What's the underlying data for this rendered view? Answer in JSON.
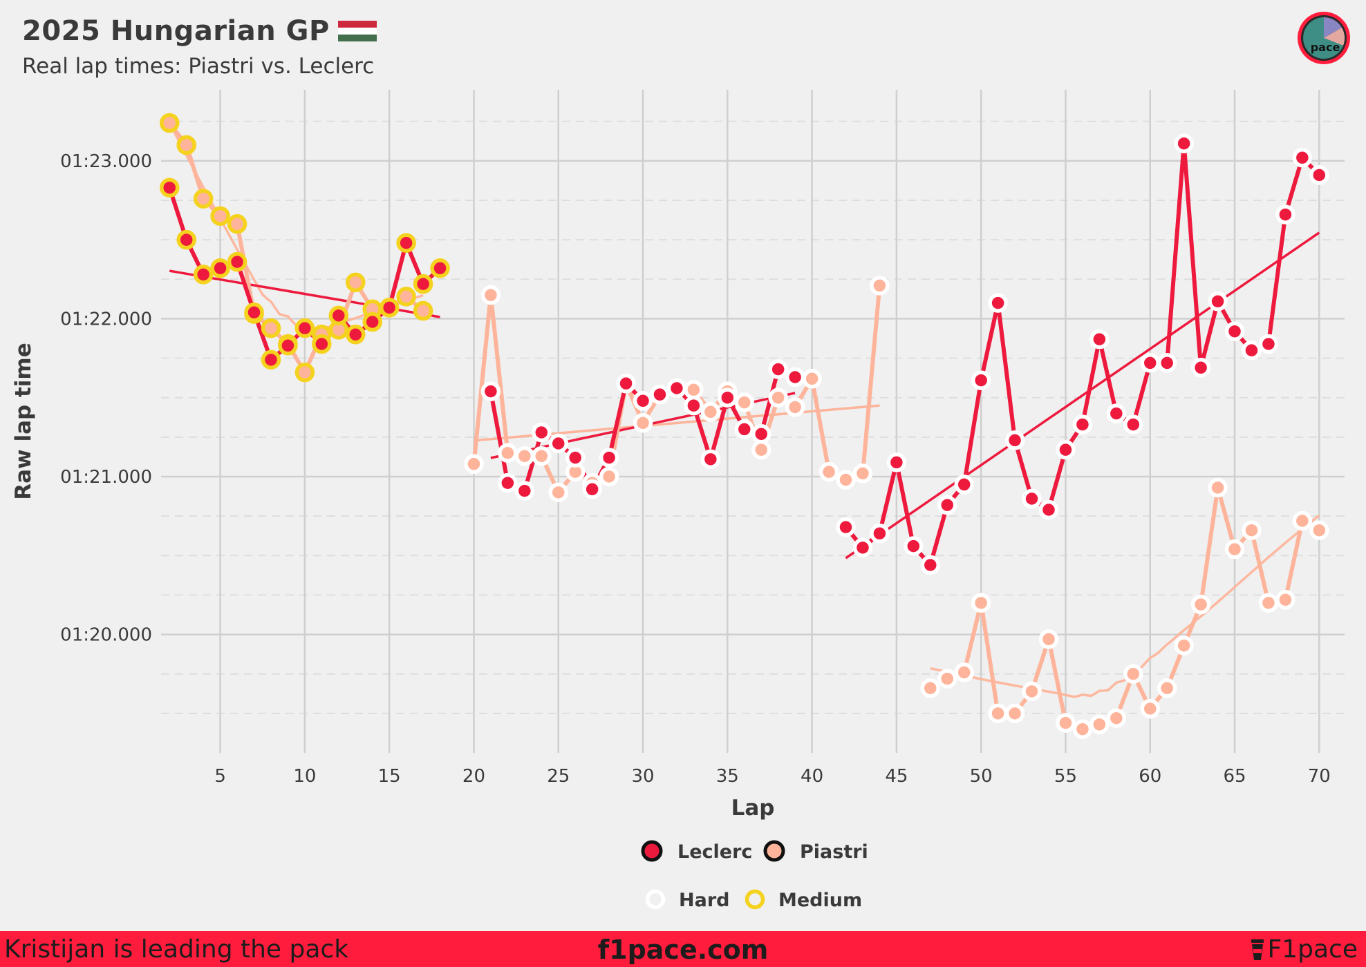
{
  "header": {
    "title": "2025 Hungarian GP",
    "subtitle": "Real lap times: Piastri vs. Leclerc",
    "flag_colors": [
      "#cd2a3e",
      "#ffffff",
      "#436f4d"
    ]
  },
  "logo": {
    "text": "pace",
    "icon": "pace-logo-icon"
  },
  "footer": {
    "left_text": "Kristijan is leading the pack",
    "center_text": "f1pace.com",
    "right_text": "F1pace",
    "right_icon": "coffee-cup-icon",
    "background": "#ff1c3c"
  },
  "chart_data": {
    "type": "line",
    "xlabel": "Lap",
    "ylabel": "Raw lap time",
    "xlim": [
      1.5,
      71.5
    ],
    "ylim": [
      79.25,
      83.45
    ],
    "x_ticks": [
      5,
      10,
      15,
      20,
      25,
      30,
      35,
      40,
      45,
      50,
      55,
      60,
      65,
      70
    ],
    "y_ticks": [
      {
        "value": 80,
        "label": "01:20.000"
      },
      {
        "value": 81,
        "label": "01:21.000"
      },
      {
        "value": 82,
        "label": "01:22.000"
      },
      {
        "value": 83,
        "label": "01:23.000"
      }
    ],
    "grid": true,
    "legend_position": "bottom",
    "legend_drivers": [
      {
        "name": "Leclerc",
        "color": "#ee1a3e"
      },
      {
        "name": "Piastri",
        "color": "#fdb49a"
      }
    ],
    "legend_compounds": [
      {
        "name": "Hard",
        "color": "#ffffff"
      },
      {
        "name": "Medium",
        "color": "#f5d21e"
      }
    ],
    "compound_colors": {
      "Hard": "#ffffff",
      "Medium": "#f5d21e"
    },
    "series": [
      {
        "name": "Leclerc",
        "color": "#ee1a3e",
        "stints": [
          {
            "compound": "Medium",
            "trend": "linear",
            "points": [
              [
                2,
                82.83
              ],
              [
                3,
                82.5
              ],
              [
                4,
                82.28
              ],
              [
                5,
                82.32
              ],
              [
                6,
                82.36
              ],
              [
                7,
                82.04
              ],
              [
                8,
                81.74
              ],
              [
                9,
                81.83
              ],
              [
                10,
                81.94
              ],
              [
                11,
                81.84
              ],
              [
                12,
                82.02
              ],
              [
                13,
                81.9
              ],
              [
                14,
                81.98
              ],
              [
                15,
                82.07
              ],
              [
                16,
                82.48
              ],
              [
                17,
                82.22
              ],
              [
                18,
                82.32
              ]
            ]
          },
          {
            "compound": "Hard",
            "trend": "linear",
            "points": [
              [
                21,
                81.54
              ],
              [
                22,
                80.96
              ],
              [
                23,
                80.91
              ],
              [
                24,
                81.28
              ],
              [
                25,
                81.21
              ],
              [
                26,
                81.12
              ],
              [
                27,
                80.92
              ],
              [
                28,
                81.12
              ],
              [
                29,
                81.59
              ],
              [
                30,
                81.48
              ],
              [
                31,
                81.52
              ],
              [
                32,
                81.56
              ],
              [
                33,
                81.45
              ],
              [
                34,
                81.11
              ],
              [
                35,
                81.5
              ],
              [
                36,
                81.3
              ],
              [
                37,
                81.27
              ],
              [
                38,
                81.68
              ],
              [
                39,
                81.63
              ]
            ]
          },
          {
            "compound": "Hard",
            "trend": "linear",
            "points": [
              [
                42,
                80.68
              ],
              [
                43,
                80.55
              ],
              [
                44,
                80.64
              ],
              [
                45,
                81.09
              ],
              [
                46,
                80.56
              ],
              [
                47,
                80.44
              ],
              [
                48,
                80.82
              ],
              [
                49,
                80.95
              ],
              [
                50,
                81.61
              ],
              [
                51,
                82.1
              ],
              [
                52,
                81.23
              ],
              [
                53,
                80.86
              ],
              [
                54,
                80.79
              ],
              [
                55,
                81.17
              ],
              [
                56,
                81.33
              ],
              [
                57,
                81.87
              ],
              [
                58,
                81.4
              ],
              [
                59,
                81.33
              ],
              [
                60,
                81.72
              ],
              [
                61,
                81.72
              ],
              [
                62,
                83.11
              ],
              [
                63,
                81.69
              ],
              [
                64,
                82.11
              ],
              [
                65,
                81.92
              ],
              [
                66,
                81.8
              ],
              [
                67,
                81.84
              ],
              [
                68,
                82.66
              ],
              [
                69,
                83.02
              ],
              [
                70,
                82.91
              ]
            ]
          }
        ]
      },
      {
        "name": "Piastri",
        "color": "#fdb49a",
        "stints": [
          {
            "compound": "Medium",
            "trend": "smooth",
            "points": [
              [
                2,
                83.24
              ],
              [
                3,
                83.1
              ],
              [
                4,
                82.76
              ],
              [
                5,
                82.65
              ],
              [
                6,
                82.6
              ],
              [
                7,
                82.03
              ],
              [
                8,
                81.94
              ],
              [
                9,
                81.84
              ],
              [
                10,
                81.66
              ],
              [
                11,
                81.9
              ],
              [
                12,
                81.93
              ],
              [
                13,
                82.23
              ],
              [
                14,
                82.06
              ],
              [
                15,
                82.07
              ],
              [
                16,
                82.14
              ],
              [
                17,
                82.05
              ]
            ]
          },
          {
            "compound": "Hard",
            "trend": "linear",
            "points": [
              [
                20,
                81.08
              ],
              [
                21,
                82.15
              ],
              [
                22,
                81.15
              ],
              [
                23,
                81.13
              ],
              [
                24,
                81.13
              ],
              [
                25,
                80.9
              ],
              [
                26,
                81.03
              ],
              [
                27,
                80.96
              ],
              [
                28,
                81.0
              ],
              [
                29,
                81.59
              ],
              [
                30,
                81.34
              ],
              [
                31,
                81.52
              ],
              [
                32,
                81.56
              ],
              [
                33,
                81.55
              ],
              [
                34,
                81.41
              ],
              [
                35,
                81.54
              ],
              [
                36,
                81.47
              ],
              [
                37,
                81.17
              ],
              [
                38,
                81.5
              ],
              [
                39,
                81.44
              ],
              [
                40,
                81.62
              ],
              [
                41,
                81.03
              ],
              [
                42,
                80.98
              ],
              [
                43,
                81.02
              ],
              [
                44,
                82.21
              ]
            ]
          },
          {
            "compound": "Hard",
            "trend": "smooth",
            "points": [
              [
                47,
                79.66
              ],
              [
                48,
                79.72
              ],
              [
                49,
                79.76
              ],
              [
                50,
                80.2
              ],
              [
                51,
                79.5
              ],
              [
                52,
                79.5
              ],
              [
                53,
                79.64
              ],
              [
                54,
                79.97
              ],
              [
                55,
                79.44
              ],
              [
                56,
                79.4
              ],
              [
                57,
                79.43
              ],
              [
                58,
                79.47
              ],
              [
                59,
                79.75
              ],
              [
                60,
                79.53
              ],
              [
                61,
                79.66
              ],
              [
                62,
                79.93
              ],
              [
                63,
                80.19
              ],
              [
                64,
                80.93
              ],
              [
                65,
                80.54
              ],
              [
                66,
                80.66
              ],
              [
                67,
                80.2
              ],
              [
                68,
                80.22
              ],
              [
                69,
                80.72
              ],
              [
                70,
                80.66
              ]
            ]
          }
        ]
      }
    ]
  }
}
